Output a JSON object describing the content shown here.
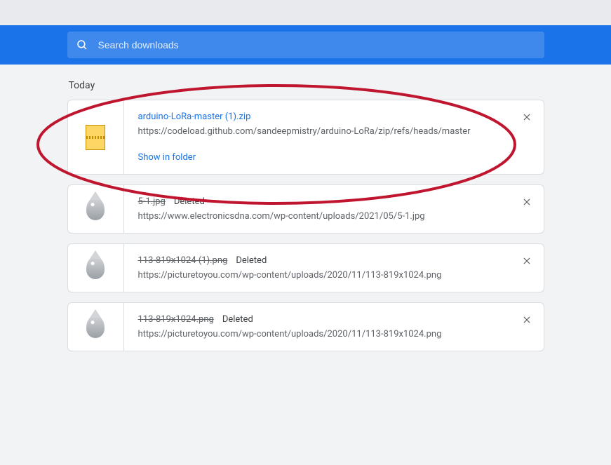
{
  "search": {
    "placeholder": "Search downloads"
  },
  "section_label": "Today",
  "show_in_folder": "Show in folder",
  "deleted_label": "Deleted",
  "items": [
    {
      "filename": "arduino-LoRa-master (1).zip",
      "url": "https://codeload.github.com/sandeepmistry/arduino-LoRa/zip/refs/heads/master",
      "deleted": false,
      "icon": "zip",
      "highlight": true
    },
    {
      "filename": "5-1.jpg",
      "url": "https://www.electronicsdna.com/wp-content/uploads/2021/05/5-1.jpg",
      "deleted": true,
      "icon": "drop"
    },
    {
      "filename": "113-819x1024 (1).png",
      "url": "https://picturetoyou.com/wp-content/uploads/2020/11/113-819x1024.png",
      "deleted": true,
      "icon": "drop"
    },
    {
      "filename": "113-819x1024.png",
      "url": "https://picturetoyou.com/wp-content/uploads/2020/11/113-819x1024.png",
      "deleted": true,
      "icon": "drop"
    }
  ],
  "annotation": {
    "ellipse_color": "#c0152f",
    "ellipse_stroke": 4
  }
}
